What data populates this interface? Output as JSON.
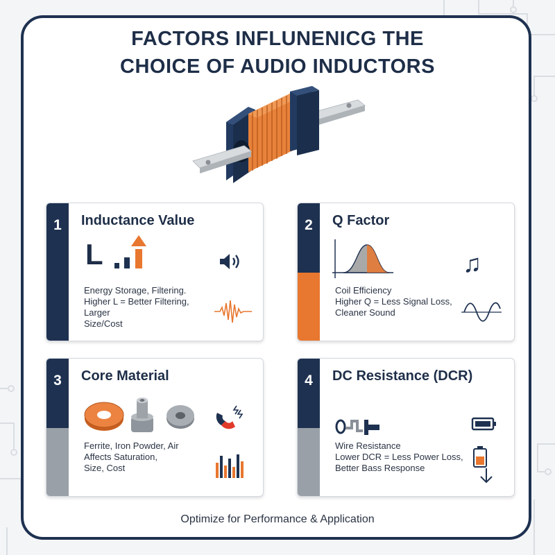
{
  "title": {
    "line1": "FACTORS INFLUNENICG THE",
    "line2": "CHOICE OF AUDIO INDUCTORS"
  },
  "colors": {
    "navy": "#1e3150",
    "orange": "#e8772f",
    "gray": "#9aa0a8"
  },
  "cards": [
    {
      "number": "1",
      "title": "Inductance Value",
      "symbol": "L",
      "desc": [
        "Energy Storage, Filtering.",
        "Higher L = Better Filtering,",
        "Larger",
        "Size/Cost"
      ],
      "icons": [
        "bar-rising-arrow-icon",
        "speaker-icon",
        "sound-wave-icon"
      ]
    },
    {
      "number": "2",
      "title": "Q Factor",
      "desc": [
        "Coil Efficiency",
        "Higher Q = Less Signal Loss,",
        "Cleaner Sound"
      ],
      "icons": [
        "bell-curve-graph-icon",
        "music-note-icon",
        "sine-wave-icon"
      ]
    },
    {
      "number": "3",
      "title": "Core Material",
      "desc": [
        "Ferrite, Iron Powder, Air",
        "Affects Saturation,",
        "Size, Cost"
      ],
      "icons": [
        "ferrite-toroid-icon",
        "iron-powder-core-icon",
        "air-core-ring-icon",
        "magnet-icon",
        "equalizer-bars-icon"
      ]
    },
    {
      "number": "4",
      "title": "DC Resistance (DCR)",
      "desc": [
        "Wire Resistance",
        "Lower DCR = Less Power Loss,",
        "Better Bass Response"
      ],
      "icons": [
        "resistor-symbol-icon",
        "battery-icon",
        "battery-low-down-icon"
      ]
    }
  ],
  "footer": "Optimize for Performance & Application"
}
